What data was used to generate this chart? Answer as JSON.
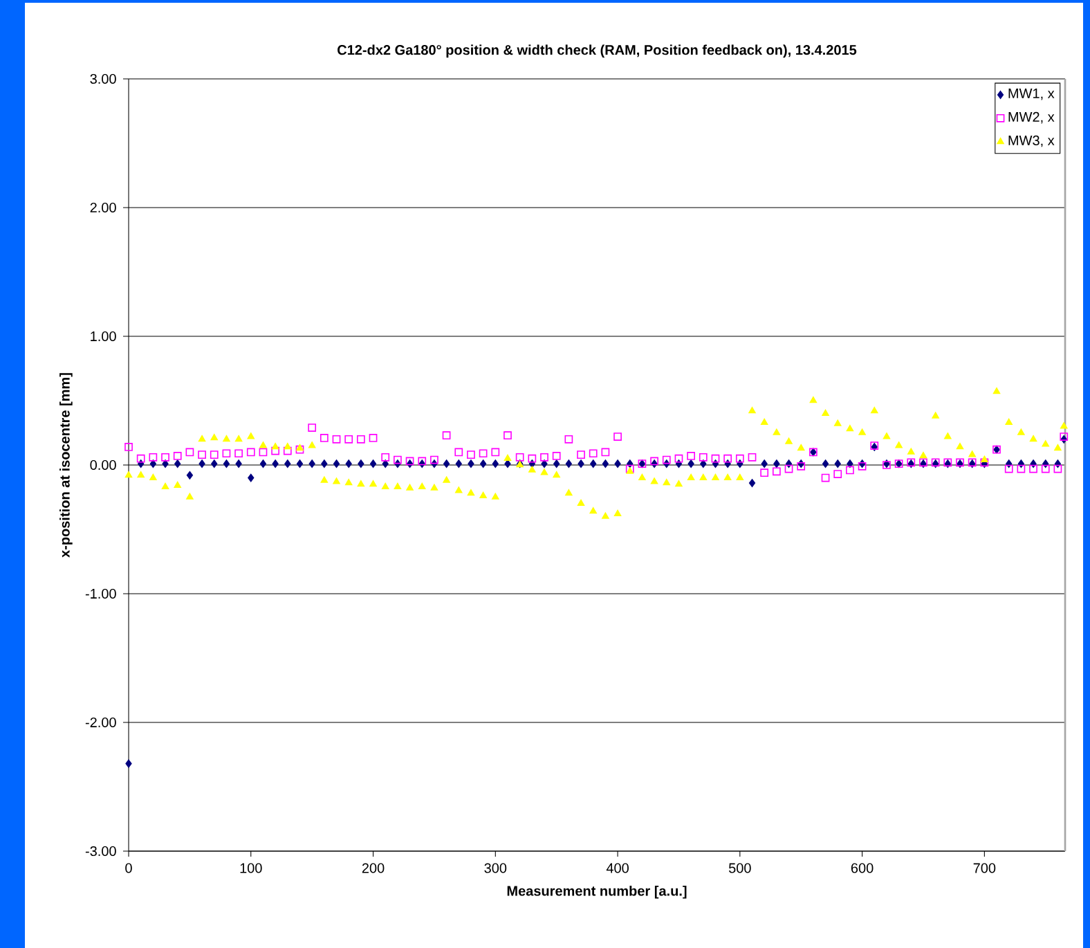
{
  "chart_data": {
    "type": "scatter",
    "title": "C12-dx2 Ga180° position & width check (RAM, Position feedback on), 13.4.2015",
    "xlabel": "Measurement number [a.u.]",
    "ylabel": "x-position at isocentre [mm]",
    "xlim": [
      0,
      766
    ],
    "ylim": [
      -3,
      3
    ],
    "xticks": [
      0,
      100,
      200,
      300,
      400,
      500,
      600,
      700
    ],
    "yticks": [
      {
        "value": -3,
        "label": "-3.00"
      },
      {
        "value": -2,
        "label": "-2.00"
      },
      {
        "value": -1,
        "label": "-1.00"
      },
      {
        "value": 0,
        "label": "0.00"
      },
      {
        "value": 1,
        "label": "1.00"
      },
      {
        "value": 2,
        "label": "2.00"
      },
      {
        "value": 3,
        "label": "3.00"
      }
    ],
    "grid": "y",
    "legend": "top right",
    "x": [
      0,
      10,
      20,
      30,
      40,
      50,
      60,
      70,
      80,
      90,
      100,
      110,
      120,
      130,
      140,
      150,
      160,
      170,
      180,
      190,
      200,
      210,
      220,
      230,
      240,
      250,
      260,
      270,
      280,
      290,
      300,
      310,
      320,
      330,
      340,
      350,
      360,
      370,
      380,
      390,
      400,
      410,
      420,
      430,
      440,
      450,
      460,
      470,
      480,
      490,
      500,
      510,
      520,
      530,
      540,
      550,
      560,
      570,
      580,
      590,
      600,
      610,
      620,
      630,
      640,
      650,
      660,
      670,
      680,
      690,
      700,
      710,
      720,
      730,
      740,
      750,
      760,
      765
    ],
    "series": [
      {
        "name": "MW1, x",
        "color": "#000080",
        "marker": "diamond",
        "values": [
          -2.32,
          0.01,
          0.01,
          0.01,
          0.01,
          -0.08,
          0.01,
          0.01,
          0.01,
          0.01,
          -0.1,
          0.01,
          0.01,
          0.01,
          0.01,
          0.01,
          0.01,
          0.01,
          0.01,
          0.01,
          0.01,
          0.01,
          0.01,
          0.01,
          0.01,
          0.01,
          0.01,
          0.01,
          0.01,
          0.01,
          0.01,
          0.01,
          0.01,
          0.01,
          0.01,
          0.01,
          0.01,
          0.01,
          0.01,
          0.01,
          0.01,
          0.01,
          0.01,
          0.01,
          0.01,
          0.01,
          0.01,
          0.01,
          0.01,
          0.01,
          0.01,
          -0.14,
          0.01,
          0.01,
          0.01,
          0.01,
          0.1,
          0.01,
          0.01,
          0.01,
          0.01,
          0.14,
          0.01,
          0.01,
          0.01,
          0.01,
          0.01,
          0.01,
          0.01,
          0.01,
          0.01,
          0.12,
          0.01,
          0.01,
          0.01,
          0.01,
          0.01,
          0.2
        ]
      },
      {
        "name": "MW2, x",
        "color": "#ff00ff",
        "marker": "square",
        "values": [
          0.14,
          0.05,
          0.06,
          0.06,
          0.07,
          0.1,
          0.08,
          0.08,
          0.09,
          0.09,
          0.1,
          0.1,
          0.11,
          0.11,
          0.12,
          0.29,
          0.21,
          0.2,
          0.2,
          0.2,
          0.21,
          0.06,
          0.04,
          0.03,
          0.03,
          0.04,
          0.23,
          0.1,
          0.08,
          0.09,
          0.1,
          0.23,
          0.06,
          0.05,
          0.06,
          0.07,
          0.2,
          0.08,
          0.09,
          0.1,
          0.22,
          -0.03,
          0.01,
          0.03,
          0.04,
          0.05,
          0.07,
          0.06,
          0.05,
          0.05,
          0.05,
          0.06,
          -0.06,
          -0.05,
          -0.03,
          -0.01,
          0.1,
          -0.1,
          -0.07,
          -0.04,
          -0.01,
          0.15,
          0.0,
          0.01,
          0.02,
          0.02,
          0.02,
          0.02,
          0.02,
          0.02,
          0.02,
          0.12,
          -0.03,
          -0.03,
          -0.03,
          -0.03,
          -0.03,
          0.22
        ]
      },
      {
        "name": "MW3, x",
        "color": "#ffff00",
        "marker": "triangle",
        "values": [
          -0.08,
          -0.08,
          -0.1,
          -0.17,
          -0.16,
          -0.25,
          0.2,
          0.21,
          0.2,
          0.2,
          0.22,
          0.15,
          0.14,
          0.14,
          0.13,
          0.15,
          -0.12,
          -0.13,
          -0.14,
          -0.15,
          -0.15,
          -0.17,
          -0.17,
          -0.18,
          -0.17,
          -0.18,
          -0.12,
          -0.2,
          -0.22,
          -0.24,
          -0.25,
          0.05,
          0.0,
          -0.04,
          -0.06,
          -0.08,
          -0.22,
          -0.3,
          -0.36,
          -0.4,
          -0.38,
          -0.05,
          -0.1,
          -0.13,
          -0.14,
          -0.15,
          -0.1,
          -0.1,
          -0.1,
          -0.1,
          -0.1,
          0.42,
          0.33,
          0.25,
          0.18,
          0.13,
          0.5,
          0.4,
          0.32,
          0.28,
          0.25,
          0.42,
          0.22,
          0.15,
          0.1,
          0.07,
          0.38,
          0.22,
          0.14,
          0.08,
          0.04,
          0.57,
          0.33,
          0.25,
          0.2,
          0.16,
          0.13,
          0.3
        ]
      }
    ]
  }
}
